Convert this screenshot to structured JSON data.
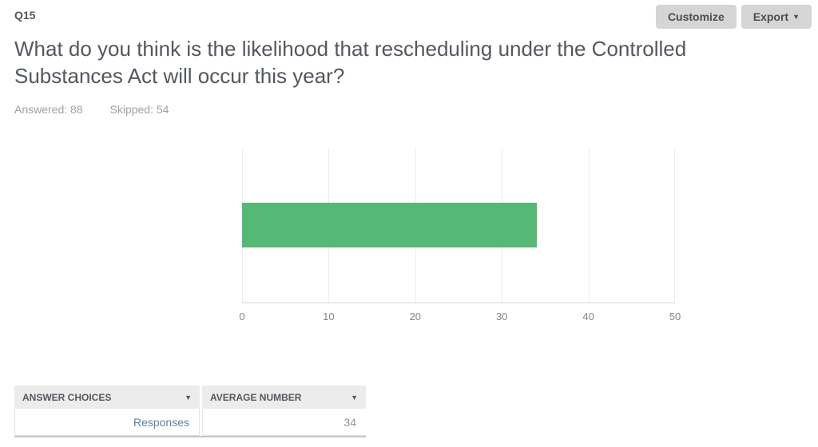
{
  "header": {
    "question_number": "Q15",
    "customize_label": "Customize",
    "export_label": "Export",
    "title": "What do you think is the likelihood that rescheduling under the Controlled Substances Act will occur this year?",
    "answered": "Answered: 88",
    "skipped": "Skipped: 54"
  },
  "icons": {
    "caret_down": "▼"
  },
  "chart_data": {
    "type": "bar",
    "orientation": "horizontal",
    "categories": [
      "Responses"
    ],
    "values": [
      34
    ],
    "xlim": [
      0,
      50
    ],
    "xticks": [
      0,
      10,
      20,
      30,
      40,
      50
    ],
    "bar_color": "#55b875",
    "grid": true,
    "title": "",
    "xlabel": "",
    "ylabel": "",
    "legend": "none"
  },
  "table": {
    "columns": [
      {
        "label": "ANSWER CHOICES"
      },
      {
        "label": "AVERAGE NUMBER"
      }
    ],
    "rows": [
      {
        "answer": "Responses",
        "average": "34"
      }
    ]
  }
}
